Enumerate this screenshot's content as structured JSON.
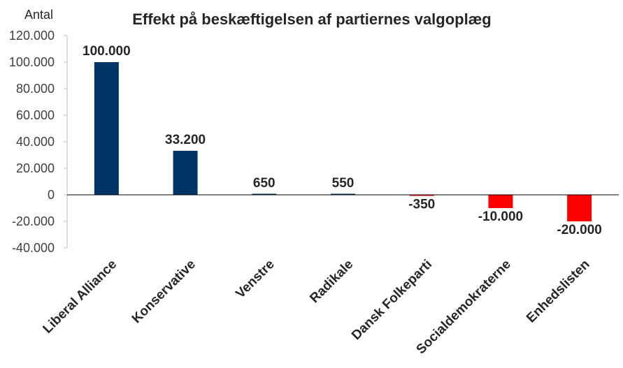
{
  "chart_data": {
    "type": "bar",
    "title": "Effekt på beskæftigelsen af partiernes valgoplæg",
    "ylabel": "Antal",
    "xlabel": "",
    "ylim": [
      -40000,
      120000
    ],
    "yticks": [
      120000,
      100000,
      80000,
      60000,
      40000,
      20000,
      0,
      -20000,
      -40000
    ],
    "ytick_labels": [
      "120.000",
      "100.000",
      "80.000",
      "60.000",
      "40.000",
      "20.000",
      "0",
      "-20.000",
      "-40.000"
    ],
    "categories": [
      "Liberal Alliance",
      "Konservative",
      "Venstre",
      "Radikale",
      "Dansk Folkeparti",
      "Socialdemokraterne",
      "Enhedslisten"
    ],
    "values": [
      100000,
      33200,
      650,
      550,
      -350,
      -10000,
      -20000
    ],
    "value_labels": [
      "100.000",
      "33.200",
      "650",
      "550",
      "-350",
      "-10.000",
      "-20.000"
    ],
    "positive_color": "#003366",
    "negative_color": "#ff0000",
    "grid": false,
    "legend": "none"
  }
}
